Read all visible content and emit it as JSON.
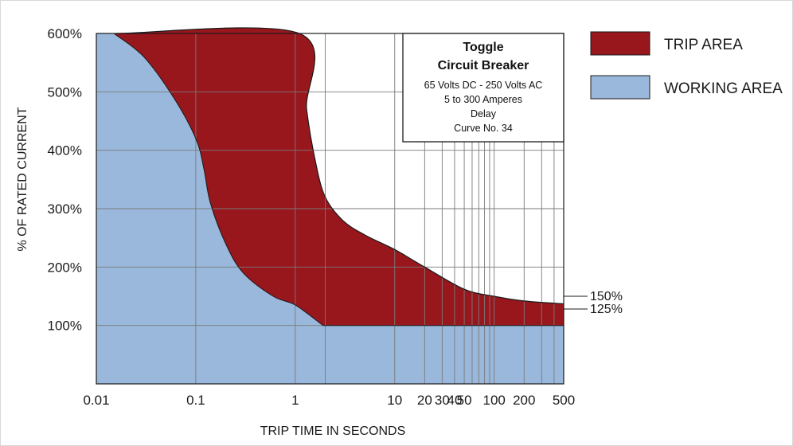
{
  "chart_data": {
    "type": "area",
    "xscale": "log",
    "xlim": [
      0.01,
      500
    ],
    "ylim": [
      0,
      600
    ],
    "xlabel": "TRIP TIME IN SECONDS",
    "ylabel": "% OF RATED CURRENT",
    "x_tick_labels": [
      {
        "value": 0.01,
        "label": "0.01"
      },
      {
        "value": 0.1,
        "label": "0.1"
      },
      {
        "value": 1,
        "label": "1"
      },
      {
        "value": 10,
        "label": "10"
      },
      {
        "value": 20,
        "label": "20"
      },
      {
        "value": 30,
        "label": "30"
      },
      {
        "value": 40,
        "label": "40"
      },
      {
        "value": 50,
        "label": "50"
      },
      {
        "value": 100,
        "label": "100"
      },
      {
        "value": 200,
        "label": "200"
      },
      {
        "value": 500,
        "label": "500"
      }
    ],
    "x_gridlines": [
      0.1,
      1,
      2,
      10,
      20,
      30,
      40,
      50,
      60,
      70,
      80,
      90,
      100,
      200,
      300,
      400
    ],
    "y_tick_labels": [
      {
        "value": 100,
        "label": "100%"
      },
      {
        "value": 200,
        "label": "200%"
      },
      {
        "value": 300,
        "label": "300%"
      },
      {
        "value": 400,
        "label": "400%"
      },
      {
        "value": 500,
        "label": "500%"
      },
      {
        "value": 600,
        "label": "600%"
      }
    ],
    "y_gridlines": [
      100,
      200,
      300,
      400,
      500
    ],
    "grid": true,
    "legend_position": "right",
    "series": [
      {
        "name": "TRIP AREA",
        "color": "#97171d",
        "min_trip_curve": [
          [
            0.015,
            600
          ],
          [
            0.03,
            560
          ],
          [
            0.06,
            490
          ],
          [
            0.1,
            420
          ],
          [
            0.12,
            370
          ],
          [
            0.14,
            310
          ],
          [
            0.2,
            240
          ],
          [
            0.3,
            190
          ],
          [
            0.6,
            150
          ],
          [
            1,
            135
          ],
          [
            1.9,
            100
          ],
          [
            500,
            100
          ]
        ],
        "max_trip_curve": [
          [
            0.016,
            600
          ],
          [
            1.1,
            600
          ],
          [
            1.3,
            470
          ],
          [
            1.6,
            380
          ],
          [
            2,
            320
          ],
          [
            3,
            280
          ],
          [
            5,
            255
          ],
          [
            10,
            230
          ],
          [
            20,
            200
          ],
          [
            50,
            162
          ],
          [
            100,
            150
          ],
          [
            200,
            142
          ],
          [
            500,
            137
          ]
        ]
      },
      {
        "name": "WORKING AREA",
        "color": "#9ab8dc"
      }
    ],
    "reference_lines": [
      {
        "label": "150%",
        "value": 150
      },
      {
        "label": "125%",
        "value": 125
      }
    ],
    "annotation": {
      "title_lines": [
        "Toggle",
        "Circuit Breaker"
      ],
      "lines": [
        "65 Volts DC - 250 Volts AC",
        "5 to 300 Amperes",
        "Delay",
        "Curve No. 34"
      ]
    }
  }
}
